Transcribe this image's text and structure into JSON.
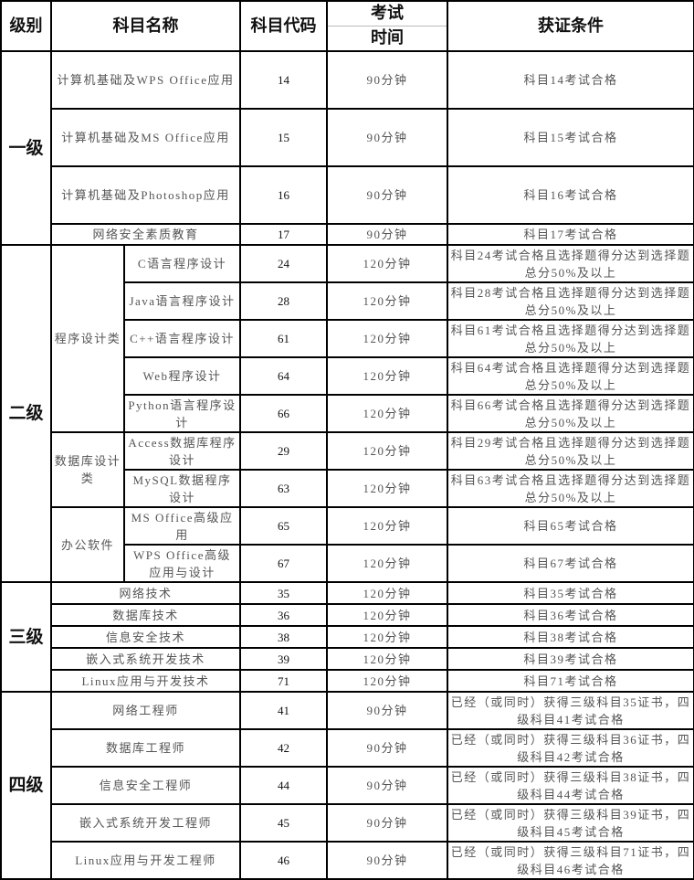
{
  "header": {
    "level": "级别",
    "name": "科目名称",
    "code": "科目代码",
    "time_top": "考试",
    "time_bottom": "时间",
    "condition": "获证条件"
  },
  "level1": {
    "label": "一级",
    "rows": [
      {
        "name": "计算机基础及WPS Office应用",
        "code": "14",
        "time": "90分钟",
        "condition": "科目14考试合格"
      },
      {
        "name": "计算机基础及MS Office应用",
        "code": "15",
        "time": "90分钟",
        "condition": "科目15考试合格"
      },
      {
        "name": "计算机基础及Photoshop应用",
        "code": "16",
        "time": "90分钟",
        "condition": "科目16考试合格"
      },
      {
        "name": "网络安全素质教育",
        "code": "17",
        "time": "90分钟",
        "condition": "科目17考试合格"
      }
    ]
  },
  "level2": {
    "label": "二级",
    "groups": [
      {
        "category": "程序设计类",
        "rows": [
          {
            "name": "C语言程序设计",
            "code": "24",
            "time": "120分钟",
            "condition": "科目24考试合格且选择题得分达到选择题总分50%及以上"
          },
          {
            "name": "Java语言程序设计",
            "code": "28",
            "time": "120分钟",
            "condition": "科目28考试合格且选择题得分达到选择题总分50%及以上"
          },
          {
            "name": "C++语言程序设计",
            "code": "61",
            "time": "120分钟",
            "condition": "科目61考试合格且选择题得分达到选择题总分50%及以上"
          },
          {
            "name": "Web程序设计",
            "code": "64",
            "time": "120分钟",
            "condition": "科目64考试合格且选择题得分达到选择题总分50%及以上"
          },
          {
            "name": "Python语言程序设计",
            "code": "66",
            "time": "120分钟",
            "condition": "科目66考试合格且选择题得分达到选择题总分50%及以上"
          }
        ]
      },
      {
        "category": "数据库设计类",
        "rows": [
          {
            "name": "Access数据库程序设计",
            "code": "29",
            "time": "120分钟",
            "condition": "科目29考试合格且选择题得分达到选择题总分50%及以上"
          },
          {
            "name": "MySQL数据程序设计",
            "code": "63",
            "time": "120分钟",
            "condition": "科目63考试合格且选择题得分达到选择题总分50%及以上"
          }
        ]
      },
      {
        "category": "办公软件",
        "rows": [
          {
            "name": "MS Office高级应用",
            "code": "65",
            "time": "120分钟",
            "condition": "科目65考试合格"
          },
          {
            "name": "WPS Office高级应用与设计",
            "code": "67",
            "time": "120分钟",
            "condition": "科目67考试合格"
          }
        ]
      }
    ]
  },
  "level3": {
    "label": "三级",
    "rows": [
      {
        "name": "网络技术",
        "code": "35",
        "time": "120分钟",
        "condition": "科目35考试合格"
      },
      {
        "name": "数据库技术",
        "code": "36",
        "time": "120分钟",
        "condition": "科目36考试合格"
      },
      {
        "name": "信息安全技术",
        "code": "38",
        "time": "120分钟",
        "condition": "科目38考试合格"
      },
      {
        "name": "嵌入式系统开发技术",
        "code": "39",
        "time": "120分钟",
        "condition": "科目39考试合格"
      },
      {
        "name": "Linux应用与开发技术",
        "code": "71",
        "time": "120分钟",
        "condition": "科目71考试合格"
      }
    ]
  },
  "level4": {
    "label": "四级",
    "rows": [
      {
        "name": "网络工程师",
        "code": "41",
        "time": "90分钟",
        "condition": "已经（或同时）获得三级科目35证书，四级科目41考试合格"
      },
      {
        "name": "数据库工程师",
        "code": "42",
        "time": "90分钟",
        "condition": "已经（或同时）获得三级科目36证书，四级科目42考试合格"
      },
      {
        "name": "信息安全工程师",
        "code": "44",
        "time": "90分钟",
        "condition": "已经（或同时）获得三级科目38证书，四级科目44考试合格"
      },
      {
        "name": "嵌入式系统开发工程师",
        "code": "45",
        "time": "90分钟",
        "condition": "已经（或同时）获得三级科目39证书，四级科目45考试合格"
      },
      {
        "name": "Linux应用与开发工程师",
        "code": "46",
        "time": "90分钟",
        "condition": "已经（或同时）获得三级科目71证书，四级科目46考试合格"
      }
    ]
  }
}
